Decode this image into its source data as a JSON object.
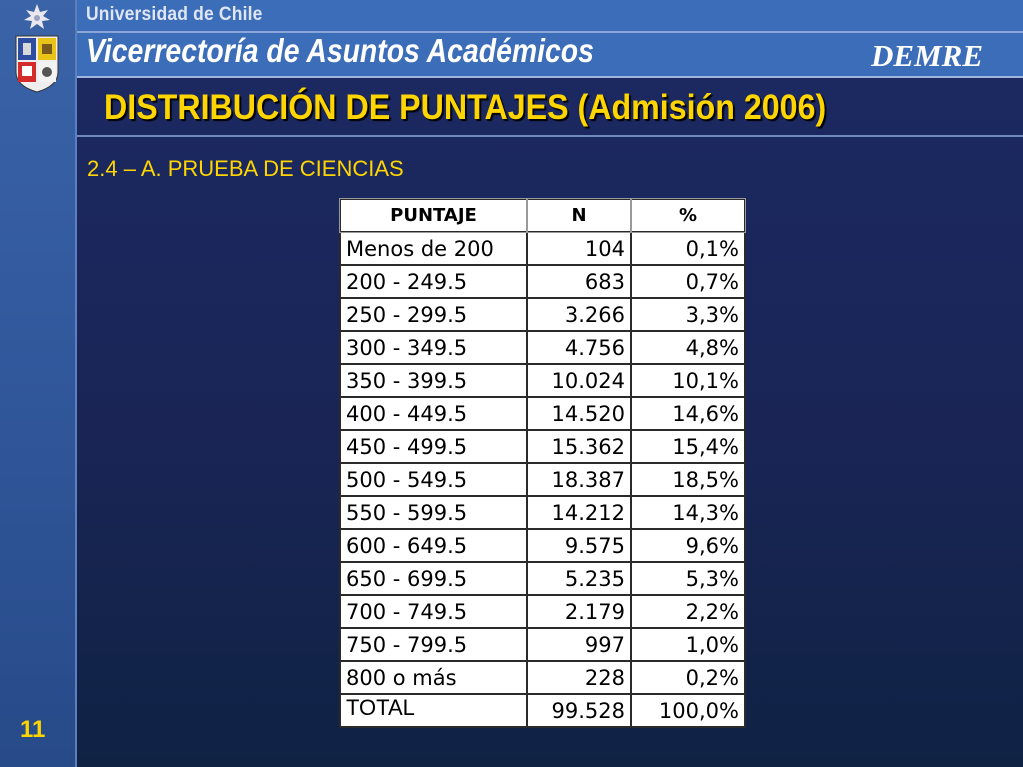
{
  "header": {
    "university": "Universidad de Chile",
    "vicerrectoria": "Vicerrectoría de Asuntos Académicos",
    "brand": "DEMRE"
  },
  "slide": {
    "title": "DISTRIBUCIÓN DE PUNTAJES (Admisión 2006)",
    "subtitle": "2.4 – A. PRUEBA DE CIENCIAS",
    "page_number": "11"
  },
  "table": {
    "headers": [
      "PUNTAJE",
      "N",
      "%"
    ],
    "rows": [
      [
        "Menos de 200",
        "104",
        "0,1%"
      ],
      [
        "200 - 249.5",
        "683",
        "0,7%"
      ],
      [
        "250 - 299.5",
        "3.266",
        "3,3%"
      ],
      [
        "300 - 349.5",
        "4.756",
        "4,8%"
      ],
      [
        "350 - 399.5",
        "10.024",
        "10,1%"
      ],
      [
        "400 - 449.5",
        "14.520",
        "14,6%"
      ],
      [
        "450 - 499.5",
        "15.362",
        "15,4%"
      ],
      [
        "500 - 549.5",
        "18.387",
        "18,5%"
      ],
      [
        "550 - 599.5",
        "14.212",
        "14,3%"
      ],
      [
        "600 - 649.5",
        "9.575",
        "9,6%"
      ],
      [
        "650 - 699.5",
        "5.235",
        "5,3%"
      ],
      [
        "700 - 749.5",
        "2.179",
        "2,2%"
      ],
      [
        "750 - 799.5",
        "997",
        "1,0%"
      ],
      [
        "800 o más",
        "228",
        "0,2%"
      ]
    ],
    "total": [
      "TOTAL",
      "99.528",
      "100,0%"
    ]
  },
  "colors": {
    "title": "#ffd500",
    "header_band": "#3c6db9",
    "left_band": "#2f5598",
    "background": "#1a2556"
  },
  "icons": {
    "logo": "university-coat-of-arms-icon"
  }
}
